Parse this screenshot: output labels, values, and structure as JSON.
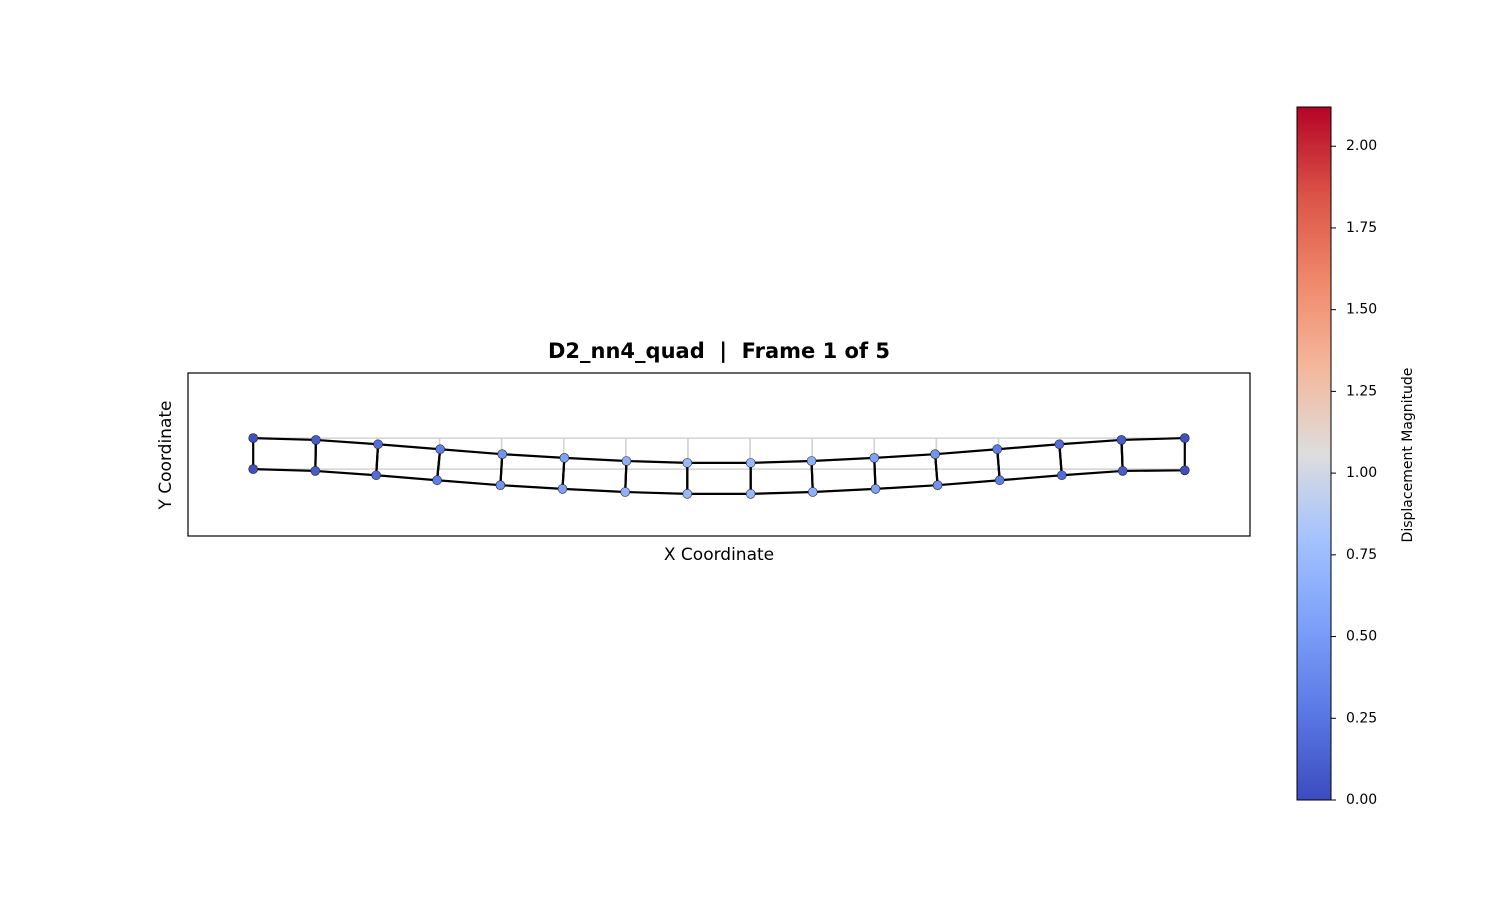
{
  "chart_data": {
    "type": "mesh",
    "title": "D2_nn4_quad  |  Frame 1 of 5",
    "xlabel": "X Coordinate",
    "ylabel": "Y Coordinate",
    "colorbar_label": "Displacement Magnitude",
    "x": [
      0,
      1.0,
      1.98,
      2.96,
      3.98,
      4.98,
      5.99,
      6.99,
      8.01,
      9.01,
      10.02,
      11.02,
      12.02,
      13.02,
      14.0,
      15.0,
      0,
      1.01,
      2.01,
      3.01,
      4.01,
      5.01,
      6.01,
      6.99,
      8.01,
      8.99,
      10.0,
      10.98,
      11.98,
      12.98,
      13.98,
      15.0
    ],
    "y": [
      0,
      -0.03,
      -0.1,
      -0.18,
      -0.26,
      -0.32,
      -0.37,
      -0.4,
      -0.4,
      -0.37,
      -0.32,
      -0.26,
      -0.18,
      -0.1,
      -0.03,
      -0.02,
      0.5,
      0.47,
      0.4,
      0.32,
      0.24,
      0.18,
      0.13,
      0.1,
      0.1,
      0.13,
      0.18,
      0.24,
      0.32,
      0.4,
      0.47,
      0.5
    ],
    "values": [
      0.02,
      0.1,
      0.2,
      0.3,
      0.45,
      0.55,
      0.65,
      0.72,
      0.72,
      0.65,
      0.55,
      0.45,
      0.3,
      0.2,
      0.1,
      0.02,
      0.02,
      0.1,
      0.2,
      0.3,
      0.45,
      0.55,
      0.65,
      0.72,
      0.72,
      0.65,
      0.55,
      0.45,
      0.3,
      0.2,
      0.1,
      0.02
    ],
    "undeformed": {
      "x": [
        0,
        1,
        2,
        3,
        4,
        5,
        6,
        7,
        8,
        9,
        10,
        11,
        12,
        13,
        14,
        15,
        0,
        1,
        2,
        3,
        4,
        5,
        6,
        7,
        8,
        9,
        10,
        11,
        12,
        13,
        14,
        15
      ],
      "y": [
        0,
        0,
        0,
        0,
        0,
        0,
        0,
        0,
        0,
        0,
        0,
        0,
        0,
        0,
        0,
        0,
        0.5,
        0.5,
        0.5,
        0.5,
        0.5,
        0.5,
        0.5,
        0.5,
        0.5,
        0.5,
        0.5,
        0.5,
        0.5,
        0.5,
        0.5,
        0.5
      ]
    },
    "elements": [
      [
        0,
        1,
        17,
        16
      ],
      [
        1,
        2,
        18,
        17
      ],
      [
        2,
        3,
        19,
        18
      ],
      [
        3,
        4,
        20,
        19
      ],
      [
        4,
        5,
        21,
        20
      ],
      [
        5,
        6,
        22,
        21
      ],
      [
        6,
        7,
        23,
        22
      ],
      [
        7,
        8,
        24,
        23
      ],
      [
        8,
        9,
        25,
        24
      ],
      [
        9,
        10,
        26,
        25
      ],
      [
        10,
        11,
        27,
        26
      ],
      [
        11,
        12,
        28,
        27
      ],
      [
        12,
        13,
        29,
        28
      ],
      [
        13,
        14,
        30,
        29
      ],
      [
        14,
        15,
        31,
        30
      ]
    ],
    "xlim": [
      -1.05,
      16.05
    ],
    "ylim": [
      -1.08,
      1.55
    ],
    "clim": [
      0,
      2.12
    ],
    "colormap": "coolwarm",
    "cticks": [
      {
        "value": 0,
        "label": "0.00"
      },
      {
        "value": 0.25,
        "label": "0.25"
      },
      {
        "value": 0.5,
        "label": "0.50"
      },
      {
        "value": 0.75,
        "label": "0.75"
      },
      {
        "value": 1,
        "label": "1.00"
      },
      {
        "value": 1.25,
        "label": "1.25"
      },
      {
        "value": 1.5,
        "label": "1.50"
      },
      {
        "value": 1.75,
        "label": "1.75"
      },
      {
        "value": 2,
        "label": "2.00"
      }
    ]
  }
}
